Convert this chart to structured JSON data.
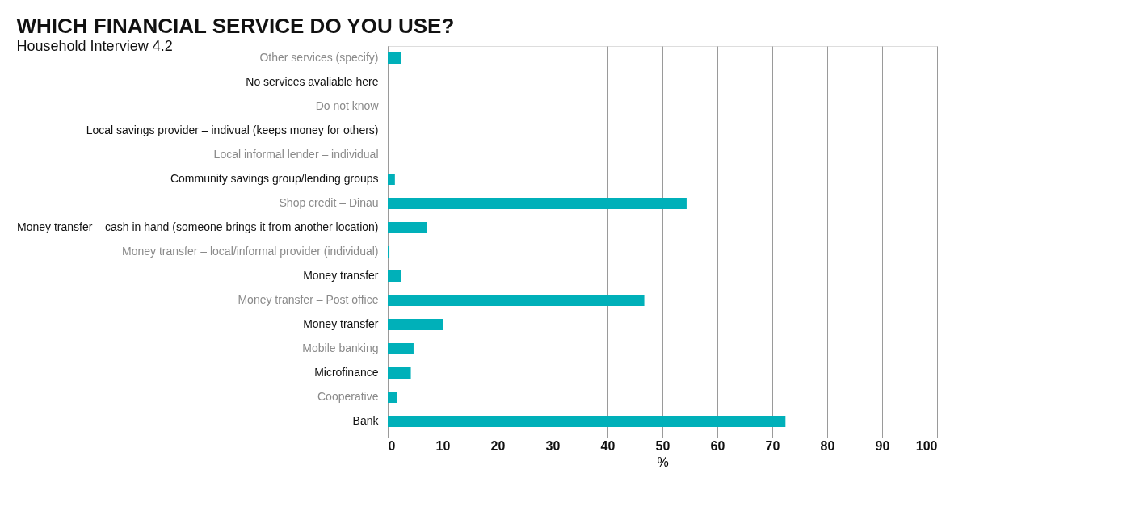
{
  "chart_data": {
    "type": "bar",
    "orientation": "horizontal",
    "title": "WHICH FINANCIAL SERVICE DO YOU USE?",
    "subtitle": "Household Interview 4.2",
    "xlabel": "%",
    "categories": [
      "Other services (specify)",
      "No services avaliable here",
      "Do not know",
      "Local savings provider – indivual (keeps money for others)",
      "Local informal lender – individual",
      "Community savings group/lending groups",
      "Shop credit – Dinau",
      "Money transfer – cash in hand (someone brings it from another location)",
      "Money transfer – local/informal provider (individual)",
      "Money transfer",
      "Money transfer – Post office",
      "Money transfer",
      "Mobile banking",
      "Microfinance",
      "Cooperative",
      "Bank"
    ],
    "values": [
      2.4,
      0,
      0,
      0,
      0,
      1.3,
      54.4,
      7.1,
      0.3,
      2.4,
      46.7,
      10.1,
      4.7,
      4.2,
      1.7,
      72.4
    ],
    "color": "#00b0b9",
    "xlim": [
      0,
      100
    ],
    "xticks": [
      0,
      10,
      20,
      30,
      40,
      50,
      60,
      70,
      80,
      90,
      100
    ],
    "grid": "x"
  }
}
